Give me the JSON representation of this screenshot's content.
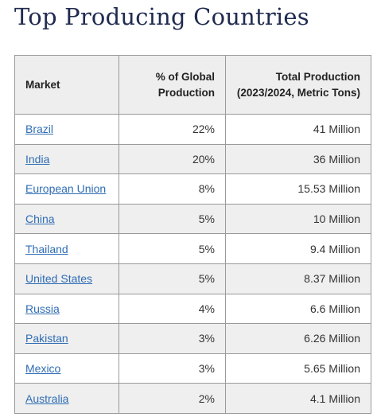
{
  "title": "Top Producing Countries",
  "table": {
    "headers": {
      "market": "Market",
      "pct": "% of Global Production",
      "prod": "Total Production (2023/2024, Metric Tons)"
    },
    "rows": [
      {
        "market": "Brazil",
        "pct": "22%",
        "prod": "41 Million"
      },
      {
        "market": "India",
        "pct": "20%",
        "prod": "36 Million"
      },
      {
        "market": "European Union",
        "pct": "8%",
        "prod": "15.53 Million"
      },
      {
        "market": "China",
        "pct": "5%",
        "prod": "10 Million"
      },
      {
        "market": "Thailand",
        "pct": "5%",
        "prod": "9.4 Million"
      },
      {
        "market": "United States",
        "pct": "5%",
        "prod": "8.37 Million"
      },
      {
        "market": "Russia",
        "pct": "4%",
        "prod": "6.6 Million"
      },
      {
        "market": "Pakistan",
        "pct": "3%",
        "prod": "6.26 Million"
      },
      {
        "market": "Mexico",
        "pct": "3%",
        "prod": "5.65 Million"
      },
      {
        "market": "Australia",
        "pct": "2%",
        "prod": "4.1 Million"
      }
    ]
  },
  "colors": {
    "title": "#1f2a4f",
    "link": "#2f6db5",
    "header_bg": "#eeeeee",
    "stripe_bg": "#efefef",
    "border": "#9a9a9a"
  }
}
